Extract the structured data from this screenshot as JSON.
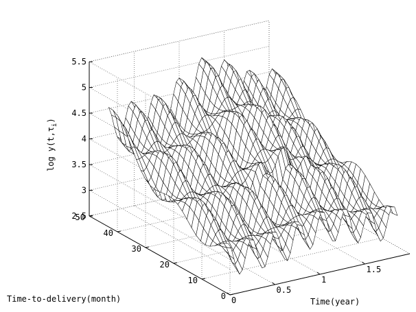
{
  "chart_data": {
    "type": "surface",
    "title": "",
    "xlabel": "Time(year)",
    "ylabel": "Time-to-delivery(month)",
    "zlabel_main": "log y(t,τ",
    "zlabel_sub": "i",
    "zlabel_close": ")",
    "xlim": [
      0,
      2
    ],
    "ylim": [
      0,
      50
    ],
    "zlim": [
      2.5,
      5.5
    ],
    "x_ticks": [
      "0",
      "0.5",
      "1",
      "1.5"
    ],
    "x_tick_values": [
      0,
      0.5,
      1,
      1.5
    ],
    "y_ticks": [
      "0",
      "10",
      "20",
      "30",
      "40",
      "50"
    ],
    "y_tick_values": [
      0,
      10,
      20,
      30,
      40,
      50
    ],
    "z_ticks": [
      "2.5",
      "3",
      "3.5",
      "4",
      "4.5",
      "5",
      "5.5"
    ],
    "z_tick_values": [
      2.5,
      3,
      3.5,
      4,
      4.5,
      5,
      5.5
    ],
    "grid": true,
    "surface_description_values": {
      "base_level": 3.6,
      "ridge_levels": [
        4.6,
        4.0,
        3.5,
        3.0
      ],
      "peak": 5.5
    }
  }
}
